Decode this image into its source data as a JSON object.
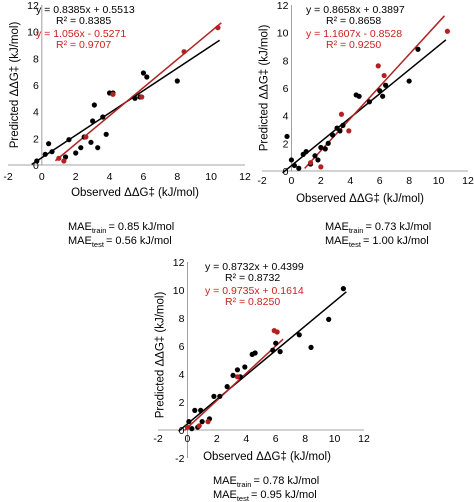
{
  "chart_data": [
    {
      "type": "scatter",
      "xlabel": "Observed ΔΔG‡ (kJ/mol)",
      "ylabel": "Predicted ΔΔG‡ (kJ/mol)",
      "xlim": [
        -2,
        12
      ],
      "ylim": [
        0,
        12
      ],
      "xticks": [
        "-2",
        "0",
        "2",
        "4",
        "6",
        "8",
        "10",
        "12"
      ],
      "yticks": [
        "0",
        "2",
        "4",
        "6",
        "8",
        "10",
        "12"
      ],
      "equations": [
        {
          "color": "#000000",
          "eq": "y = 0.8385x + 0.5513",
          "r2": "R² = 0.8385"
        },
        {
          "color": "#cc1f1f",
          "eq": "y = 1.056x - 0.5271",
          "r2": "R² = 0.9707"
        }
      ],
      "fits": [
        {
          "color": "#000000",
          "slope": 0.8385,
          "intercept": 0.5513,
          "x_range": [
            -0.6,
            10.5
          ]
        },
        {
          "color": "#b22222",
          "slope": 1.056,
          "intercept": -0.5271,
          "x_range": [
            0.8,
            10.6
          ]
        }
      ],
      "series": [
        {
          "color": "#000000",
          "points": [
            [
              -0.3,
              0.3
            ],
            [
              0.2,
              0.8
            ],
            [
              0.4,
              1.6
            ],
            [
              0.6,
              1.0
            ],
            [
              1.4,
              0.6
            ],
            [
              1.6,
              1.9
            ],
            [
              2.0,
              0.9
            ],
            [
              2.3,
              1.3
            ],
            [
              2.5,
              2.1
            ],
            [
              2.9,
              1.7
            ],
            [
              3.0,
              3.3
            ],
            [
              3.1,
              4.5
            ],
            [
              3.3,
              1.3
            ],
            [
              3.6,
              3.6
            ],
            [
              3.8,
              2.3
            ],
            [
              4.0,
              5.4
            ],
            [
              4.2,
              5.4
            ],
            [
              5.5,
              5.0
            ],
            [
              5.8,
              5.1
            ],
            [
              6.0,
              6.9
            ],
            [
              6.2,
              6.6
            ],
            [
              8.0,
              6.3
            ]
          ]
        },
        {
          "color": "#b22222",
          "points": [
            [
              1.0,
              0.5
            ],
            [
              1.3,
              0.3
            ],
            [
              2.6,
              2.1
            ],
            [
              4.2,
              5.3
            ],
            [
              5.9,
              5.1
            ],
            [
              8.4,
              8.5
            ],
            [
              10.4,
              10.3
            ]
          ]
        }
      ],
      "mae": {
        "train_label": "MAE",
        "train_sub": "train",
        "train_value": "= 0.85 kJ/mol",
        "test_label": "MAE",
        "test_sub": "test",
        "test_value": "= 0.56 kJ/mol"
      }
    },
    {
      "type": "scatter",
      "xlabel": "Observed ΔΔG‡ (kJ/mol)",
      "ylabel": "Predicted ΔΔG‡ (kJ/mol)",
      "xlim": [
        -2,
        12
      ],
      "ylim": [
        0,
        12
      ],
      "xticks": [
        "-2",
        "0",
        "2",
        "4",
        "6",
        "8",
        "10",
        "12"
      ],
      "yticks": [
        "0",
        "2",
        "4",
        "6",
        "8",
        "10",
        "12"
      ],
      "equations": [
        {
          "color": "#000000",
          "eq": "y = 0.8658x + 0.3897",
          "r2": "R² = 0.8658"
        },
        {
          "color": "#cc1f1f",
          "eq": "y = 1.1607x - 0.8528",
          "r2": "R² = 0.9250"
        }
      ],
      "fits": [
        {
          "color": "#000000",
          "slope": 0.8658,
          "intercept": 0.3897,
          "x_range": [
            -0.6,
            10.5
          ]
        },
        {
          "color": "#b22222",
          "slope": 1.1607,
          "intercept": -0.8528,
          "x_range": [
            0.9,
            10.4
          ]
        }
      ],
      "series": [
        {
          "color": "#000000",
          "points": [
            [
              -0.3,
              2.5
            ],
            [
              0.0,
              0.8
            ],
            [
              0.2,
              0.4
            ],
            [
              0.5,
              0.2
            ],
            [
              0.8,
              1.2
            ],
            [
              1.0,
              1.4
            ],
            [
              1.3,
              0.5
            ],
            [
              1.6,
              1.1
            ],
            [
              1.8,
              0.8
            ],
            [
              2.0,
              1.7
            ],
            [
              2.3,
              1.6
            ],
            [
              2.5,
              2.0
            ],
            [
              2.8,
              2.6
            ],
            [
              3.1,
              3.1
            ],
            [
              3.3,
              2.9
            ],
            [
              3.5,
              3.3
            ],
            [
              4.4,
              5.5
            ],
            [
              4.6,
              5.4
            ],
            [
              5.3,
              5.0
            ],
            [
              6.0,
              5.8
            ],
            [
              6.2,
              5.4
            ],
            [
              6.4,
              6.2
            ],
            [
              8.0,
              6.5
            ],
            [
              8.6,
              8.8
            ]
          ]
        },
        {
          "color": "#b22222",
          "points": [
            [
              1.3,
              0.6
            ],
            [
              2.0,
              0.3
            ],
            [
              3.4,
              4.1
            ],
            [
              3.9,
              2.9
            ],
            [
              5.9,
              7.6
            ],
            [
              6.3,
              6.9
            ],
            [
              10.6,
              10.1
            ]
          ]
        }
      ],
      "mae": {
        "train_label": "MAE",
        "train_sub": "train",
        "train_value": "= 0.73 kJ/mol",
        "test_label": "MAE",
        "test_sub": "test",
        "test_value": "= 1.00 kJ/mol"
      }
    },
    {
      "type": "scatter",
      "xlabel": "Observed ΔΔG‡ (kJ/mol)",
      "ylabel": "Predicted ΔΔG‡ (kJ/mol)",
      "xlim": [
        -2,
        12
      ],
      "ylim": [
        -2,
        12
      ],
      "xticks": [
        "-2",
        "0",
        "2",
        "4",
        "6",
        "8",
        "10",
        "12"
      ],
      "yticks": [
        "-2",
        "0",
        "2",
        "4",
        "6",
        "8",
        "10",
        "12"
      ],
      "equations": [
        {
          "color": "#000000",
          "eq": "y = 0.8732x + 0.4399",
          "r2": "R² = 0.8732"
        },
        {
          "color": "#cc1f1f",
          "eq": "y = 0.9735x + 0.1614",
          "r2": "R² = 0.8250"
        }
      ],
      "fits": [
        {
          "color": "#000000",
          "slope": 0.8732,
          "intercept": 0.4399,
          "x_range": [
            -0.6,
            10.8
          ]
        },
        {
          "color": "#b22222",
          "slope": 0.9735,
          "intercept": 0.1614,
          "x_range": [
            -0.2,
            6.5
          ]
        }
      ],
      "series": [
        {
          "color": "#000000",
          "points": [
            [
              0.1,
              0.6
            ],
            [
              0.3,
              0.1
            ],
            [
              0.5,
              1.4
            ],
            [
              0.7,
              0.2
            ],
            [
              0.9,
              1.4
            ],
            [
              1.0,
              0.6
            ],
            [
              1.5,
              0.8
            ],
            [
              1.8,
              2.4
            ],
            [
              2.2,
              2.4
            ],
            [
              2.7,
              3.1
            ],
            [
              3.1,
              3.9
            ],
            [
              3.4,
              4.3
            ],
            [
              3.6,
              3.8
            ],
            [
              3.9,
              4.5
            ],
            [
              4.4,
              5.4
            ],
            [
              4.6,
              5.5
            ],
            [
              5.8,
              5.7
            ],
            [
              6.0,
              6.2
            ],
            [
              6.3,
              5.6
            ],
            [
              7.6,
              6.8
            ],
            [
              8.4,
              5.9
            ],
            [
              9.6,
              7.9
            ],
            [
              10.6,
              10.1
            ]
          ]
        },
        {
          "color": "#b22222",
          "points": [
            [
              0.0,
              0.2
            ],
            [
              0.8,
              0.3
            ],
            [
              1.4,
              0.6
            ],
            [
              3.4,
              3.8
            ],
            [
              5.9,
              7.1
            ],
            [
              6.1,
              7.0
            ]
          ]
        }
      ],
      "mae": {
        "train_label": "MAE",
        "train_sub": "train",
        "train_value": "= 0.78 kJ/mol",
        "test_label": "MAE",
        "test_sub": "test",
        "test_value": "= 0.95 kJ/mol"
      }
    }
  ]
}
